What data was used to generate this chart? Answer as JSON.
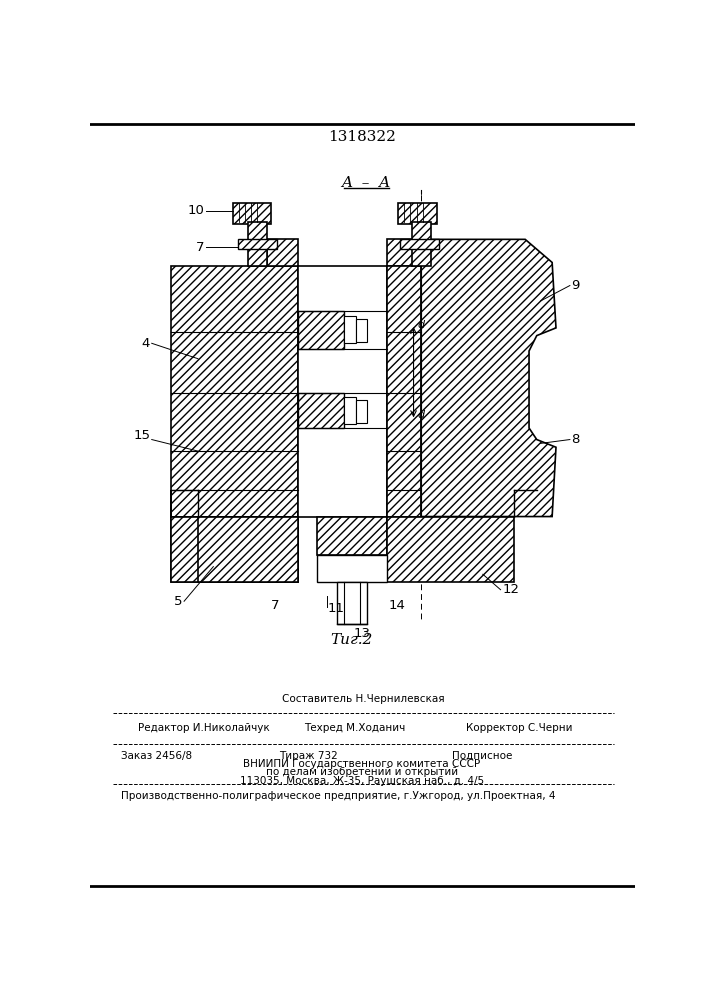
{
  "patent_number": "1318322",
  "section_label": "A – A",
  "fig_label": "Τиг.2",
  "background_color": "#ffffff",
  "line_color": "#000000",
  "footer": {
    "line0_center": "Составитель Н.Чернилевская",
    "line1_left": "Редактор И.Николайчук",
    "line1_center": "Техред М.Ходанич",
    "line1_right": "Корректор С.Черни",
    "line2_left": "Заказ 2456/8",
    "line2_center": "Тираж 732",
    "line2_right": "Подписное",
    "line3": "ВНИИПИ Государственного комитета СССР",
    "line4": "по делам изобретений и открытий",
    "line5": "113035, Москва, Ж-35, Раушская наб., д. 4/5",
    "line6": "Производственно-полиграфическое предприятие, г.Ужгород, ул.Проектная, 4"
  }
}
